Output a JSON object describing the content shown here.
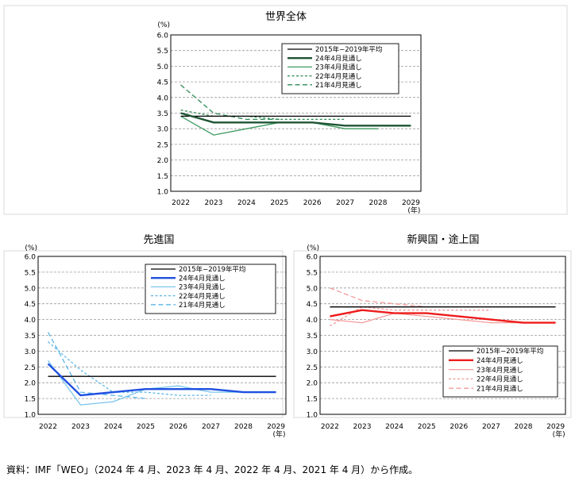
{
  "chart_data": [
    {
      "type": "line",
      "title": "世界全体",
      "ylabel": "(%)",
      "xlabel": "(年)",
      "x": [
        2022,
        2023,
        2024,
        2025,
        2026,
        2027,
        2028,
        2029
      ],
      "x_tick_labels": [
        "2022",
        "2023",
        "2024",
        "2025",
        "2026",
        "2027",
        "2028",
        "2029"
      ],
      "ylim": [
        1.0,
        6.0
      ],
      "y_ticks": [
        "1.0",
        "1.5",
        "2.0",
        "2.5",
        "3.0",
        "3.5",
        "4.0",
        "4.5",
        "5.0",
        "5.5",
        "6.0"
      ],
      "legend_position": "top-right",
      "grid": true,
      "series": [
        {
          "name": "2015年−2019年平均",
          "color": "#000000",
          "style": "solid",
          "width": 1.3,
          "values": [
            3.4,
            3.4,
            3.4,
            3.4,
            3.4,
            3.4,
            3.4,
            3.4
          ]
        },
        {
          "name": "24年4月見通し",
          "color": "#1e5534",
          "style": "solid",
          "width": 2.4,
          "values": [
            3.5,
            3.2,
            3.2,
            3.2,
            3.2,
            3.1,
            3.1,
            3.1
          ]
        },
        {
          "name": "23年4月見通し",
          "color": "#3f9a62",
          "style": "solid",
          "width": 1.3,
          "values": [
            3.4,
            2.8,
            3.0,
            3.2,
            3.2,
            3.0,
            3.0,
            null
          ]
        },
        {
          "name": "22年4月見通し",
          "color": "#2e8b57",
          "style": "dotted",
          "width": 1.3,
          "values": [
            3.6,
            3.4,
            3.4,
            3.3,
            3.3,
            3.3,
            null,
            null
          ]
        },
        {
          "name": "21年4月見通し",
          "color": "#2e8b57",
          "style": "dashed",
          "width": 1.3,
          "values": [
            4.4,
            3.5,
            3.3,
            3.3,
            null,
            null,
            null,
            null
          ]
        }
      ]
    },
    {
      "type": "line",
      "title": "先進国",
      "ylabel": "(%)",
      "xlabel": "(年)",
      "x": [
        2022,
        2023,
        2024,
        2025,
        2026,
        2027,
        2028,
        2029
      ],
      "x_tick_labels": [
        "2022",
        "2023",
        "2024",
        "2025",
        "2026",
        "2027",
        "2028",
        "2029"
      ],
      "ylim": [
        1.0,
        6.0
      ],
      "y_ticks": [
        "1.0",
        "1.5",
        "2.0",
        "2.5",
        "3.0",
        "3.5",
        "4.0",
        "4.5",
        "5.0",
        "5.5",
        "6.0"
      ],
      "legend_position": "top-right",
      "grid": true,
      "series": [
        {
          "name": "2015年−2019年平均",
          "color": "#000000",
          "style": "solid",
          "width": 1.3,
          "values": [
            2.2,
            2.2,
            2.2,
            2.2,
            2.2,
            2.2,
            2.2,
            2.2
          ]
        },
        {
          "name": "24年4月見通し",
          "color": "#1f4fe0",
          "style": "solid",
          "width": 2.4,
          "values": [
            2.6,
            1.6,
            1.7,
            1.8,
            1.8,
            1.8,
            1.7,
            1.7
          ]
        },
        {
          "name": "23年4月見通し",
          "color": "#7ac5ec",
          "style": "solid",
          "width": 1.3,
          "values": [
            2.7,
            1.3,
            1.4,
            1.8,
            1.9,
            1.7,
            1.7,
            null
          ]
        },
        {
          "name": "22年4月見通し",
          "color": "#5bb6e8",
          "style": "dotted",
          "width": 1.3,
          "values": [
            3.3,
            2.4,
            1.7,
            1.7,
            1.6,
            1.6,
            null,
            null
          ]
        },
        {
          "name": "21年4月見通し",
          "color": "#5bb6e8",
          "style": "dashed",
          "width": 1.3,
          "values": [
            3.6,
            1.7,
            1.6,
            1.5,
            null,
            null,
            null,
            null
          ]
        }
      ]
    },
    {
      "type": "line",
      "title": "新興国・途上国",
      "ylabel": "(%)",
      "xlabel": "(年)",
      "x": [
        2022,
        2023,
        2024,
        2025,
        2026,
        2027,
        2028,
        2029
      ],
      "x_tick_labels": [
        "2022",
        "2023",
        "2024",
        "2025",
        "2026",
        "2027",
        "2028",
        "2029"
      ],
      "ylim": [
        1.0,
        6.0
      ],
      "y_ticks": [
        "1.0",
        "1.5",
        "2.0",
        "2.5",
        "3.0",
        "3.5",
        "4.0",
        "4.5",
        "5.0",
        "5.5",
        "6.0"
      ],
      "legend_position": "bottom-right",
      "grid": true,
      "series": [
        {
          "name": "2015年−2019年平均",
          "color": "#000000",
          "style": "solid",
          "width": 1.3,
          "values": [
            4.4,
            4.4,
            4.4,
            4.4,
            4.4,
            4.4,
            4.4,
            4.4
          ]
        },
        {
          "name": "24年4月見通し",
          "color": "#ee1c1c",
          "style": "solid",
          "width": 2.4,
          "values": [
            4.1,
            4.3,
            4.2,
            4.2,
            4.1,
            4.0,
            3.9,
            3.9
          ]
        },
        {
          "name": "23年4月見通し",
          "color": "#f49a9a",
          "style": "solid",
          "width": 1.3,
          "values": [
            4.0,
            3.9,
            4.2,
            4.1,
            4.0,
            3.9,
            3.9,
            null
          ]
        },
        {
          "name": "22年4月見通し",
          "color": "#f49a9a",
          "style": "dotted",
          "width": 1.3,
          "values": [
            3.8,
            4.4,
            4.3,
            4.3,
            4.3,
            4.3,
            null,
            null
          ]
        },
        {
          "name": "21年4月見通し",
          "color": "#f49a9a",
          "style": "dashed",
          "width": 1.3,
          "values": [
            5.0,
            4.6,
            4.5,
            4.4,
            null,
            null,
            null,
            null
          ]
        }
      ]
    }
  ],
  "footnote": "資料：IMF「WEO」（2024 年 4 月、2023 年 4 月、2022 年 4 月、2021 年 4 月）から作成。"
}
